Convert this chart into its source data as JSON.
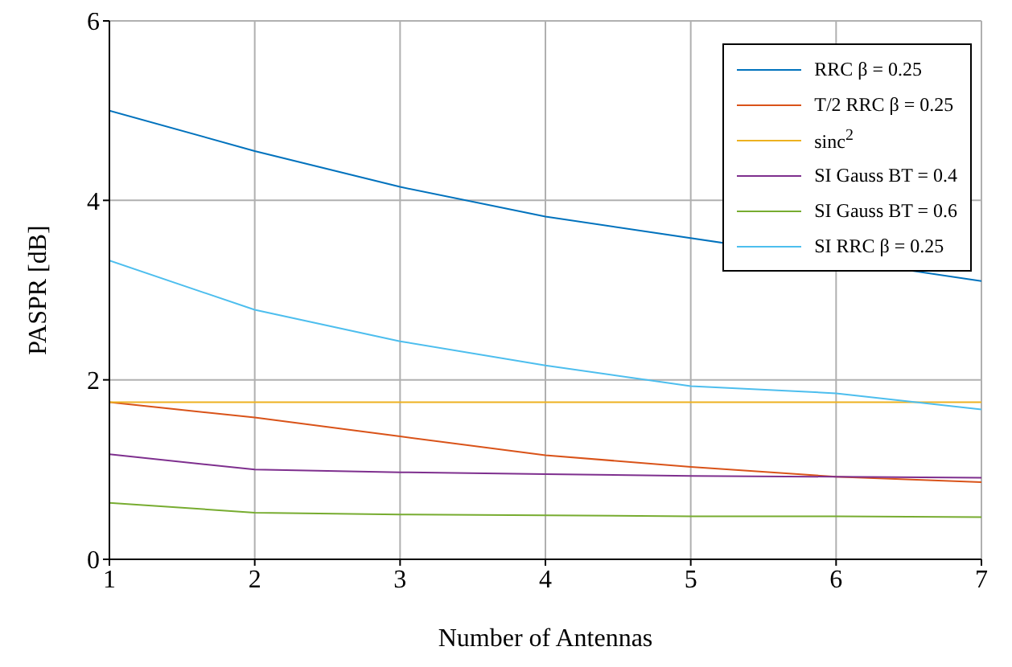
{
  "chart_data": {
    "type": "line",
    "xlabel": "Number of Antennas",
    "ylabel": "PASPR [dB]",
    "x": [
      1,
      2,
      3,
      4,
      5,
      6,
      7
    ],
    "xlim": [
      1,
      7
    ],
    "xticks": [
      1,
      2,
      3,
      4,
      5,
      6,
      7
    ],
    "ylim": [
      0,
      6
    ],
    "yticks": [
      0,
      2,
      4,
      6
    ],
    "grid": true,
    "legend": "top right",
    "marker": "none",
    "line_style": "solid",
    "series": [
      {
        "name": "RRC β = 0.25",
        "color": "#0072bd",
        "values": [
          5.0,
          4.55,
          4.15,
          3.82,
          null,
          null,
          3.1
        ]
      },
      {
        "name": "T/2 RRC β = 0.25",
        "color": "#d95319",
        "values": [
          1.75,
          1.58,
          1.37,
          1.16,
          1.03,
          0.92,
          0.86
        ]
      },
      {
        "name": "sinc$^{2}$",
        "color": "#edb120",
        "values": [
          1.75,
          1.75,
          1.75,
          1.75,
          1.75,
          1.75,
          1.75
        ]
      },
      {
        "name": "SI Gauss BT = 0.4",
        "color": "#7e2f8e",
        "values": [
          1.17,
          1.0,
          0.97,
          0.95,
          0.93,
          0.92,
          0.91
        ]
      },
      {
        "name": "SI Gauss BT = 0.6",
        "color": "#77ac30",
        "values": [
          0.63,
          0.52,
          0.5,
          0.49,
          0.48,
          0.48,
          0.47
        ]
      },
      {
        "name": "SI RRC β = 0.25",
        "color": "#4dbeee",
        "values": [
          3.33,
          2.78,
          2.43,
          2.16,
          1.93,
          1.85,
          1.67
        ]
      }
    ]
  }
}
